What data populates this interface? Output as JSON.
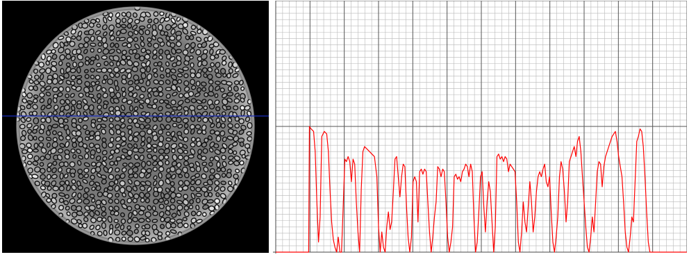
{
  "colors": {
    "image_background": "#000000",
    "grain_fill": "#9a9a9a",
    "grain_gaps": "#101010",
    "cross_section_line": "#1a2dbf",
    "plot_background": "#ffffff",
    "minor_grid": "#b8b8b8",
    "major_grid": "#555555",
    "profile_line": "#ff0000"
  },
  "image_panel": {
    "content": "ct-slice-cross-section",
    "profile_line_orientation": "horizontal"
  },
  "chart_data": {
    "type": "line",
    "title": "",
    "xlabel": "",
    "ylabel": "",
    "xlim": [
      0,
      100
    ],
    "ylim": [
      0,
      100
    ],
    "grid": true,
    "series": [
      {
        "values_xy": [
          [
            0,
            0
          ],
          [
            8,
            0
          ],
          [
            8.2,
            50
          ],
          [
            8.6,
            49
          ],
          [
            9.2,
            48
          ],
          [
            9.6,
            40
          ],
          [
            10,
            20
          ],
          [
            10.4,
            4
          ],
          [
            10.8,
            14
          ],
          [
            11.2,
            46
          ],
          [
            11.8,
            48
          ],
          [
            12.4,
            47
          ],
          [
            12.8,
            40
          ],
          [
            13.2,
            25
          ],
          [
            13.6,
            12
          ],
          [
            14,
            5
          ],
          [
            14.4,
            2
          ],
          [
            14.8,
            0
          ],
          [
            15.2,
            6
          ],
          [
            15.6,
            0
          ],
          [
            16,
            0
          ],
          [
            16.4,
            18
          ],
          [
            16.8,
            37
          ],
          [
            17.2,
            36
          ],
          [
            17.6,
            38
          ],
          [
            18,
            36
          ],
          [
            18.4,
            28
          ],
          [
            18.8,
            37
          ],
          [
            19.2,
            35
          ],
          [
            19.6,
            20
          ],
          [
            20,
            8
          ],
          [
            20.4,
            0
          ],
          [
            20.8,
            25
          ],
          [
            21.2,
            40
          ],
          [
            21.6,
            42
          ],
          [
            22.2,
            41
          ],
          [
            22.8,
            40
          ],
          [
            23.4,
            39
          ],
          [
            24,
            38
          ],
          [
            24.6,
            30
          ],
          [
            25,
            10
          ],
          [
            25.4,
            0
          ],
          [
            25.8,
            8
          ],
          [
            26.2,
            2
          ],
          [
            26.6,
            0
          ],
          [
            27,
            10
          ],
          [
            27.4,
            16
          ],
          [
            27.8,
            9
          ],
          [
            28.2,
            12
          ],
          [
            28.6,
            24
          ],
          [
            29,
            37
          ],
          [
            29.4,
            38
          ],
          [
            29.8,
            30
          ],
          [
            30.2,
            22
          ],
          [
            30.6,
            30
          ],
          [
            31,
            35
          ],
          [
            31.4,
            34
          ],
          [
            31.8,
            18
          ],
          [
            32.2,
            6
          ],
          [
            32.6,
            0
          ],
          [
            33,
            6
          ],
          [
            33.4,
            28
          ],
          [
            33.8,
            30
          ],
          [
            34.2,
            28
          ],
          [
            34.6,
            12
          ],
          [
            35,
            32
          ],
          [
            35.4,
            33
          ],
          [
            35.8,
            31
          ],
          [
            36.2,
            33
          ],
          [
            36.6,
            32
          ],
          [
            37,
            20
          ],
          [
            37.4,
            8
          ],
          [
            37.8,
            0
          ],
          [
            38.2,
            6
          ],
          [
            38.6,
            14
          ],
          [
            39,
            20
          ],
          [
            39.4,
            34
          ],
          [
            39.8,
            33
          ],
          [
            40.2,
            30
          ],
          [
            40.6,
            33
          ],
          [
            41,
            32
          ],
          [
            41.4,
            20
          ],
          [
            41.8,
            6
          ],
          [
            42.2,
            0
          ],
          [
            42.6,
            4
          ],
          [
            43,
            10
          ],
          [
            43.4,
            30
          ],
          [
            43.8,
            31
          ],
          [
            44.2,
            29
          ],
          [
            44.6,
            30
          ],
          [
            45,
            28
          ],
          [
            45.4,
            32
          ],
          [
            45.8,
            33
          ],
          [
            46.2,
            35
          ],
          [
            46.6,
            34
          ],
          [
            47,
            30
          ],
          [
            47.4,
            35
          ],
          [
            47.8,
            32
          ],
          [
            48.2,
            14
          ],
          [
            48.6,
            0
          ],
          [
            49,
            4
          ],
          [
            49.4,
            16
          ],
          [
            49.8,
            30
          ],
          [
            50.2,
            32
          ],
          [
            50.6,
            18
          ],
          [
            51,
            8
          ],
          [
            51.4,
            20
          ],
          [
            51.8,
            28
          ],
          [
            52.2,
            24
          ],
          [
            52.6,
            12
          ],
          [
            53,
            0
          ],
          [
            53.4,
            10
          ],
          [
            53.8,
            38
          ],
          [
            54.2,
            39
          ],
          [
            54.6,
            37
          ],
          [
            55,
            38
          ],
          [
            55.4,
            36
          ],
          [
            55.8,
            38
          ],
          [
            56.2,
            37
          ],
          [
            56.6,
            32
          ],
          [
            57,
            35
          ],
          [
            57.4,
            34
          ],
          [
            57.8,
            33
          ],
          [
            58.2,
            32
          ],
          [
            58.6,
            20
          ],
          [
            59,
            4
          ],
          [
            59.4,
            0
          ],
          [
            59.8,
            8
          ],
          [
            60.2,
            20
          ],
          [
            60.6,
            12
          ],
          [
            61,
            8
          ],
          [
            61.4,
            18
          ],
          [
            61.8,
            28
          ],
          [
            62.2,
            20
          ],
          [
            62.6,
            8
          ],
          [
            63,
            14
          ],
          [
            63.4,
            24
          ],
          [
            63.8,
            30
          ],
          [
            64.2,
            32
          ],
          [
            64.6,
            30
          ],
          [
            65,
            33
          ],
          [
            65.4,
            35
          ],
          [
            65.8,
            28
          ],
          [
            66.2,
            26
          ],
          [
            66.6,
            30
          ],
          [
            67,
            16
          ],
          [
            67.4,
            4
          ],
          [
            67.8,
            0
          ],
          [
            68.2,
            6
          ],
          [
            68.6,
            14
          ],
          [
            69,
            30
          ],
          [
            69.4,
            36
          ],
          [
            69.8,
            33
          ],
          [
            70.2,
            24
          ],
          [
            70.6,
            12
          ],
          [
            71,
            20
          ],
          [
            71.4,
            36
          ],
          [
            71.8,
            38
          ],
          [
            72.2,
            40
          ],
          [
            72.6,
            42
          ],
          [
            73,
            38
          ],
          [
            73.4,
            44
          ],
          [
            73.8,
            46
          ],
          [
            74.2,
            40
          ],
          [
            74.6,
            30
          ],
          [
            75,
            20
          ],
          [
            75.4,
            10
          ],
          [
            75.8,
            2
          ],
          [
            76.2,
            0
          ],
          [
            76.6,
            6
          ],
          [
            77,
            14
          ],
          [
            77.4,
            8
          ],
          [
            77.8,
            20
          ],
          [
            78.2,
            32
          ],
          [
            78.6,
            36
          ],
          [
            79,
            35
          ],
          [
            79.4,
            26
          ],
          [
            79.8,
            34
          ],
          [
            80.2,
            38
          ],
          [
            80.6,
            40
          ],
          [
            81,
            42
          ],
          [
            81.4,
            44
          ],
          [
            81.8,
            46
          ],
          [
            82.2,
            47
          ],
          [
            82.6,
            48
          ],
          [
            83,
            44
          ],
          [
            83.4,
            38
          ],
          [
            83.8,
            34
          ],
          [
            84.2,
            30
          ],
          [
            84.6,
            20
          ],
          [
            85,
            8
          ],
          [
            85.4,
            2
          ],
          [
            85.8,
            0
          ],
          [
            86.2,
            6
          ],
          [
            86.6,
            14
          ],
          [
            87,
            12
          ],
          [
            87.4,
            28
          ],
          [
            87.8,
            44
          ],
          [
            88.2,
            46
          ],
          [
            88.6,
            49
          ],
          [
            89,
            48
          ],
          [
            89.4,
            42
          ],
          [
            89.8,
            30
          ],
          [
            90.2,
            16
          ],
          [
            90.6,
            4
          ],
          [
            91,
            0
          ],
          [
            92,
            0
          ],
          [
            100,
            0
          ]
        ]
      }
    ]
  }
}
